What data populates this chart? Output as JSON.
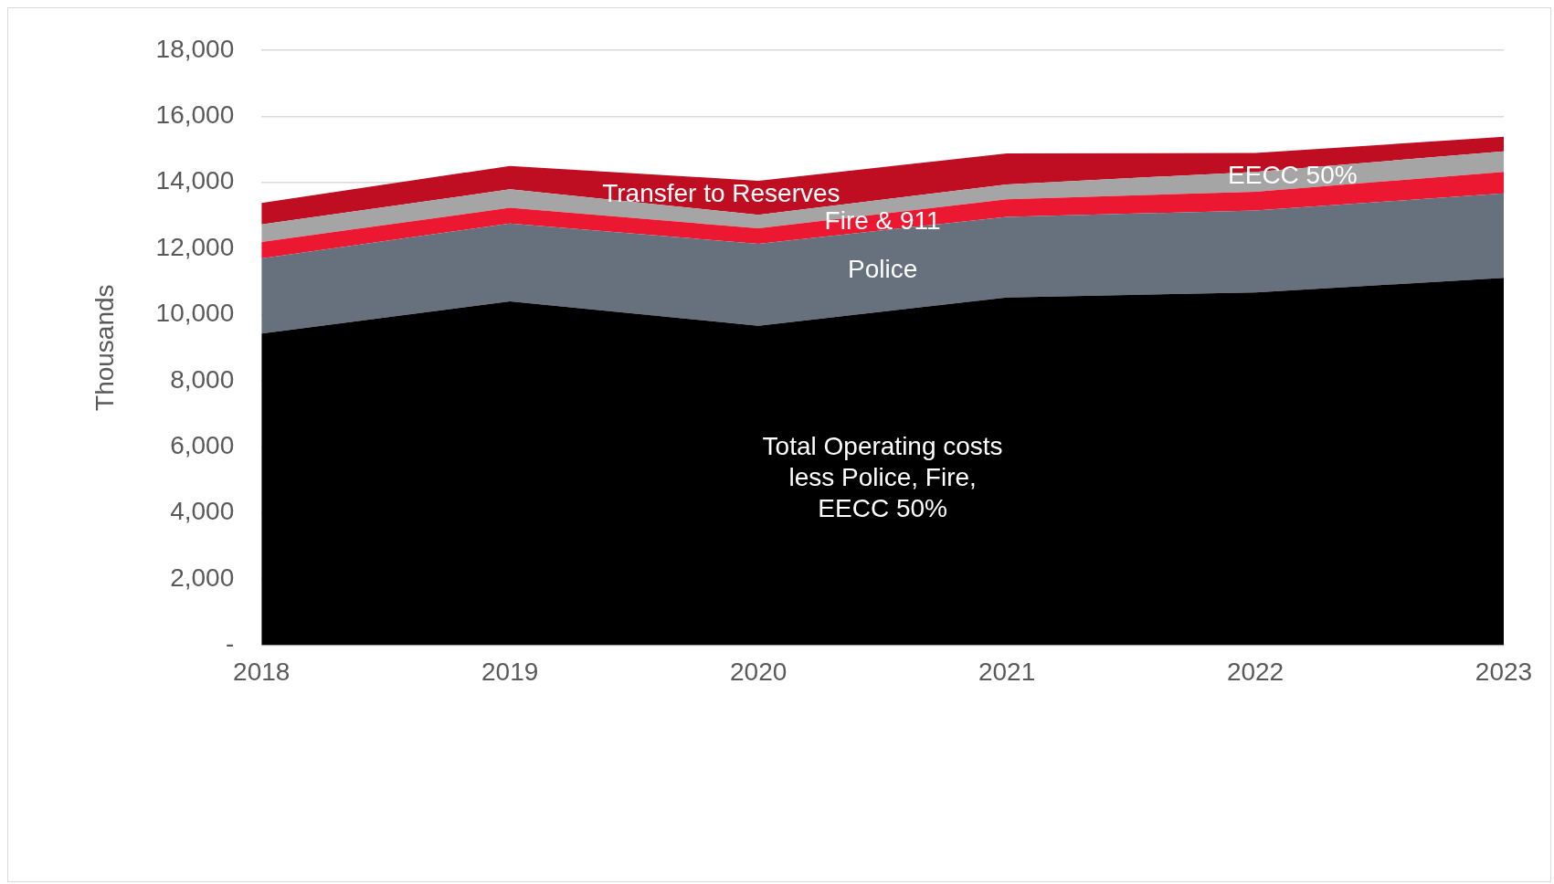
{
  "chart_data": {
    "type": "area",
    "stacked": true,
    "ylabel": "Thousands",
    "categories": [
      "2018",
      "2019",
      "2020",
      "2021",
      "2022",
      "2023"
    ],
    "series": [
      {
        "name": "Total Operating costs\nless Police, Fire,\nEECC 50%",
        "color": "#000000",
        "values": [
          9430,
          10400,
          9660,
          10520,
          10670,
          11110
        ]
      },
      {
        "name": "Police",
        "color": "#67717e",
        "values": [
          2270,
          2360,
          2480,
          2440,
          2480,
          2560
        ]
      },
      {
        "name": "Fire & 911",
        "color": "#ec1730",
        "values": [
          500,
          470,
          470,
          530,
          570,
          650
        ]
      },
      {
        "name": "EECC 50%",
        "color": "#a5a5a5",
        "values": [
          530,
          560,
          410,
          450,
          600,
          620
        ]
      },
      {
        "name": "Transfer to Reserves",
        "color": "#bf0e22",
        "values": [
          650,
          710,
          1030,
          940,
          570,
          440
        ]
      }
    ],
    "ylim": [
      0,
      18000
    ],
    "yticks": [
      {
        "value": 0,
        "label": "-"
      },
      {
        "value": 2000,
        "label": "2,000"
      },
      {
        "value": 4000,
        "label": "4,000"
      },
      {
        "value": 6000,
        "label": "6,000"
      },
      {
        "value": 8000,
        "label": "8,000"
      },
      {
        "value": 10000,
        "label": "10,000"
      },
      {
        "value": 12000,
        "label": "12,000"
      },
      {
        "value": 14000,
        "label": "14,000"
      },
      {
        "value": 16000,
        "label": "16,000"
      },
      {
        "value": 18000,
        "label": "18,000"
      }
    ],
    "grid": "y",
    "legend": false
  }
}
